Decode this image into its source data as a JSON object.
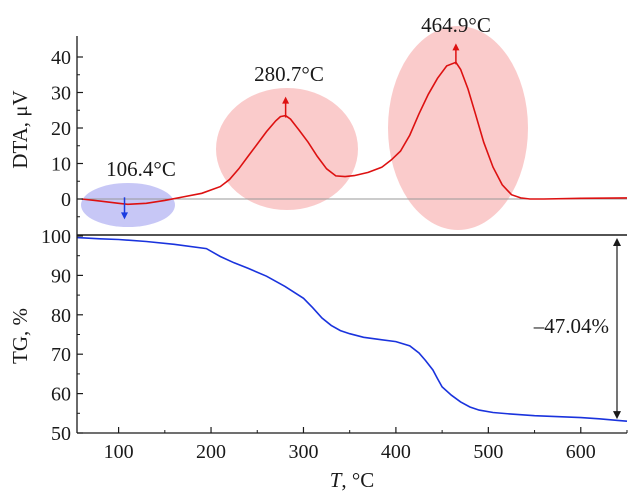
{
  "chart_data": [
    {
      "type": "line",
      "panel": "top",
      "ylabel": "DTA, μV",
      "xlim": [
        55,
        650
      ],
      "ylim": [
        -8,
        45
      ],
      "yticks": [
        0,
        10,
        20,
        30,
        40
      ],
      "baseline": {
        "y": 0,
        "color": "#9a9a9a"
      },
      "series": [
        {
          "color": "#dd1111",
          "x": [
            60,
            80,
            100,
            110,
            130,
            150,
            170,
            190,
            210,
            220,
            230,
            240,
            250,
            260,
            270,
            275,
            280.7,
            286,
            295,
            305,
            315,
            325,
            335,
            345,
            355,
            370,
            385,
            395,
            405,
            415,
            425,
            435,
            445,
            455,
            464.9,
            470,
            478,
            486,
            495,
            505,
            515,
            525,
            535,
            545,
            560,
            600,
            650
          ],
          "y": [
            0,
            -0.6,
            -1.2,
            -1.5,
            -1.2,
            -0.4,
            0.6,
            1.6,
            3.5,
            5.5,
            8.5,
            12,
            15.5,
            19,
            22,
            23.2,
            23.5,
            22.5,
            19.5,
            16,
            12,
            8.5,
            6.5,
            6.3,
            6.6,
            7.5,
            9,
            11,
            13.5,
            18,
            24,
            29.5,
            34,
            37.5,
            38.5,
            36.5,
            31,
            24,
            16,
            9,
            4,
            1.2,
            0.3,
            0,
            0,
            0.2,
            0.3
          ]
        }
      ],
      "annotations": [
        {
          "text": "106.4°C",
          "x": 106.4,
          "y": -1.5,
          "arrow": "down",
          "arrow_color": "#1a3be0",
          "ellipse_color": "#9999ee"
        },
        {
          "text": "280.7°C",
          "x": 280.7,
          "y": 23.5,
          "arrow": "up",
          "arrow_color": "#dd1111",
          "ellipse_color": "#f5a0a0"
        },
        {
          "text": "464.9°C",
          "x": 464.9,
          "y": 38.5,
          "arrow": "up",
          "arrow_color": "#dd1111",
          "ellipse_color": "#f5a0a0"
        }
      ]
    },
    {
      "type": "line",
      "panel": "bottom",
      "xlabel_var": "T",
      "xlabel_unit": ", °C",
      "ylabel": "TG, %",
      "xlim": [
        55,
        650
      ],
      "ylim": [
        50,
        100
      ],
      "xticks": [
        100,
        200,
        300,
        400,
        500,
        600
      ],
      "yticks": [
        50,
        60,
        70,
        80,
        90,
        100
      ],
      "series": [
        {
          "color": "#1a33dd",
          "x": [
            55,
            80,
            100,
            130,
            160,
            195,
            210,
            225,
            240,
            260,
            280,
            300,
            310,
            320,
            330,
            340,
            350,
            365,
            380,
            400,
            415,
            425,
            432,
            440,
            445,
            450,
            460,
            470,
            480,
            490,
            505,
            525,
            550,
            580,
            600,
            620,
            640,
            650
          ],
          "y": [
            99.6,
            99.3,
            99.1,
            98.6,
            97.9,
            96.8,
            94.8,
            93.2,
            91.8,
            89.8,
            87.2,
            84.2,
            81.8,
            79.2,
            77.3,
            76.0,
            75.2,
            74.3,
            73.8,
            73.2,
            72.1,
            70.3,
            68.4,
            66.0,
            63.8,
            61.7,
            59.6,
            57.9,
            56.6,
            55.8,
            55.2,
            54.8,
            54.4,
            54.1,
            53.9,
            53.6,
            53.2,
            53.0
          ]
        }
      ],
      "annotations": [
        {
          "text": "–47.04%",
          "y_from": 100,
          "y_to": 53,
          "arrow": "double"
        }
      ]
    }
  ],
  "colors": {
    "axis": "#1a1a1a",
    "divider": "#1a1a1a"
  }
}
